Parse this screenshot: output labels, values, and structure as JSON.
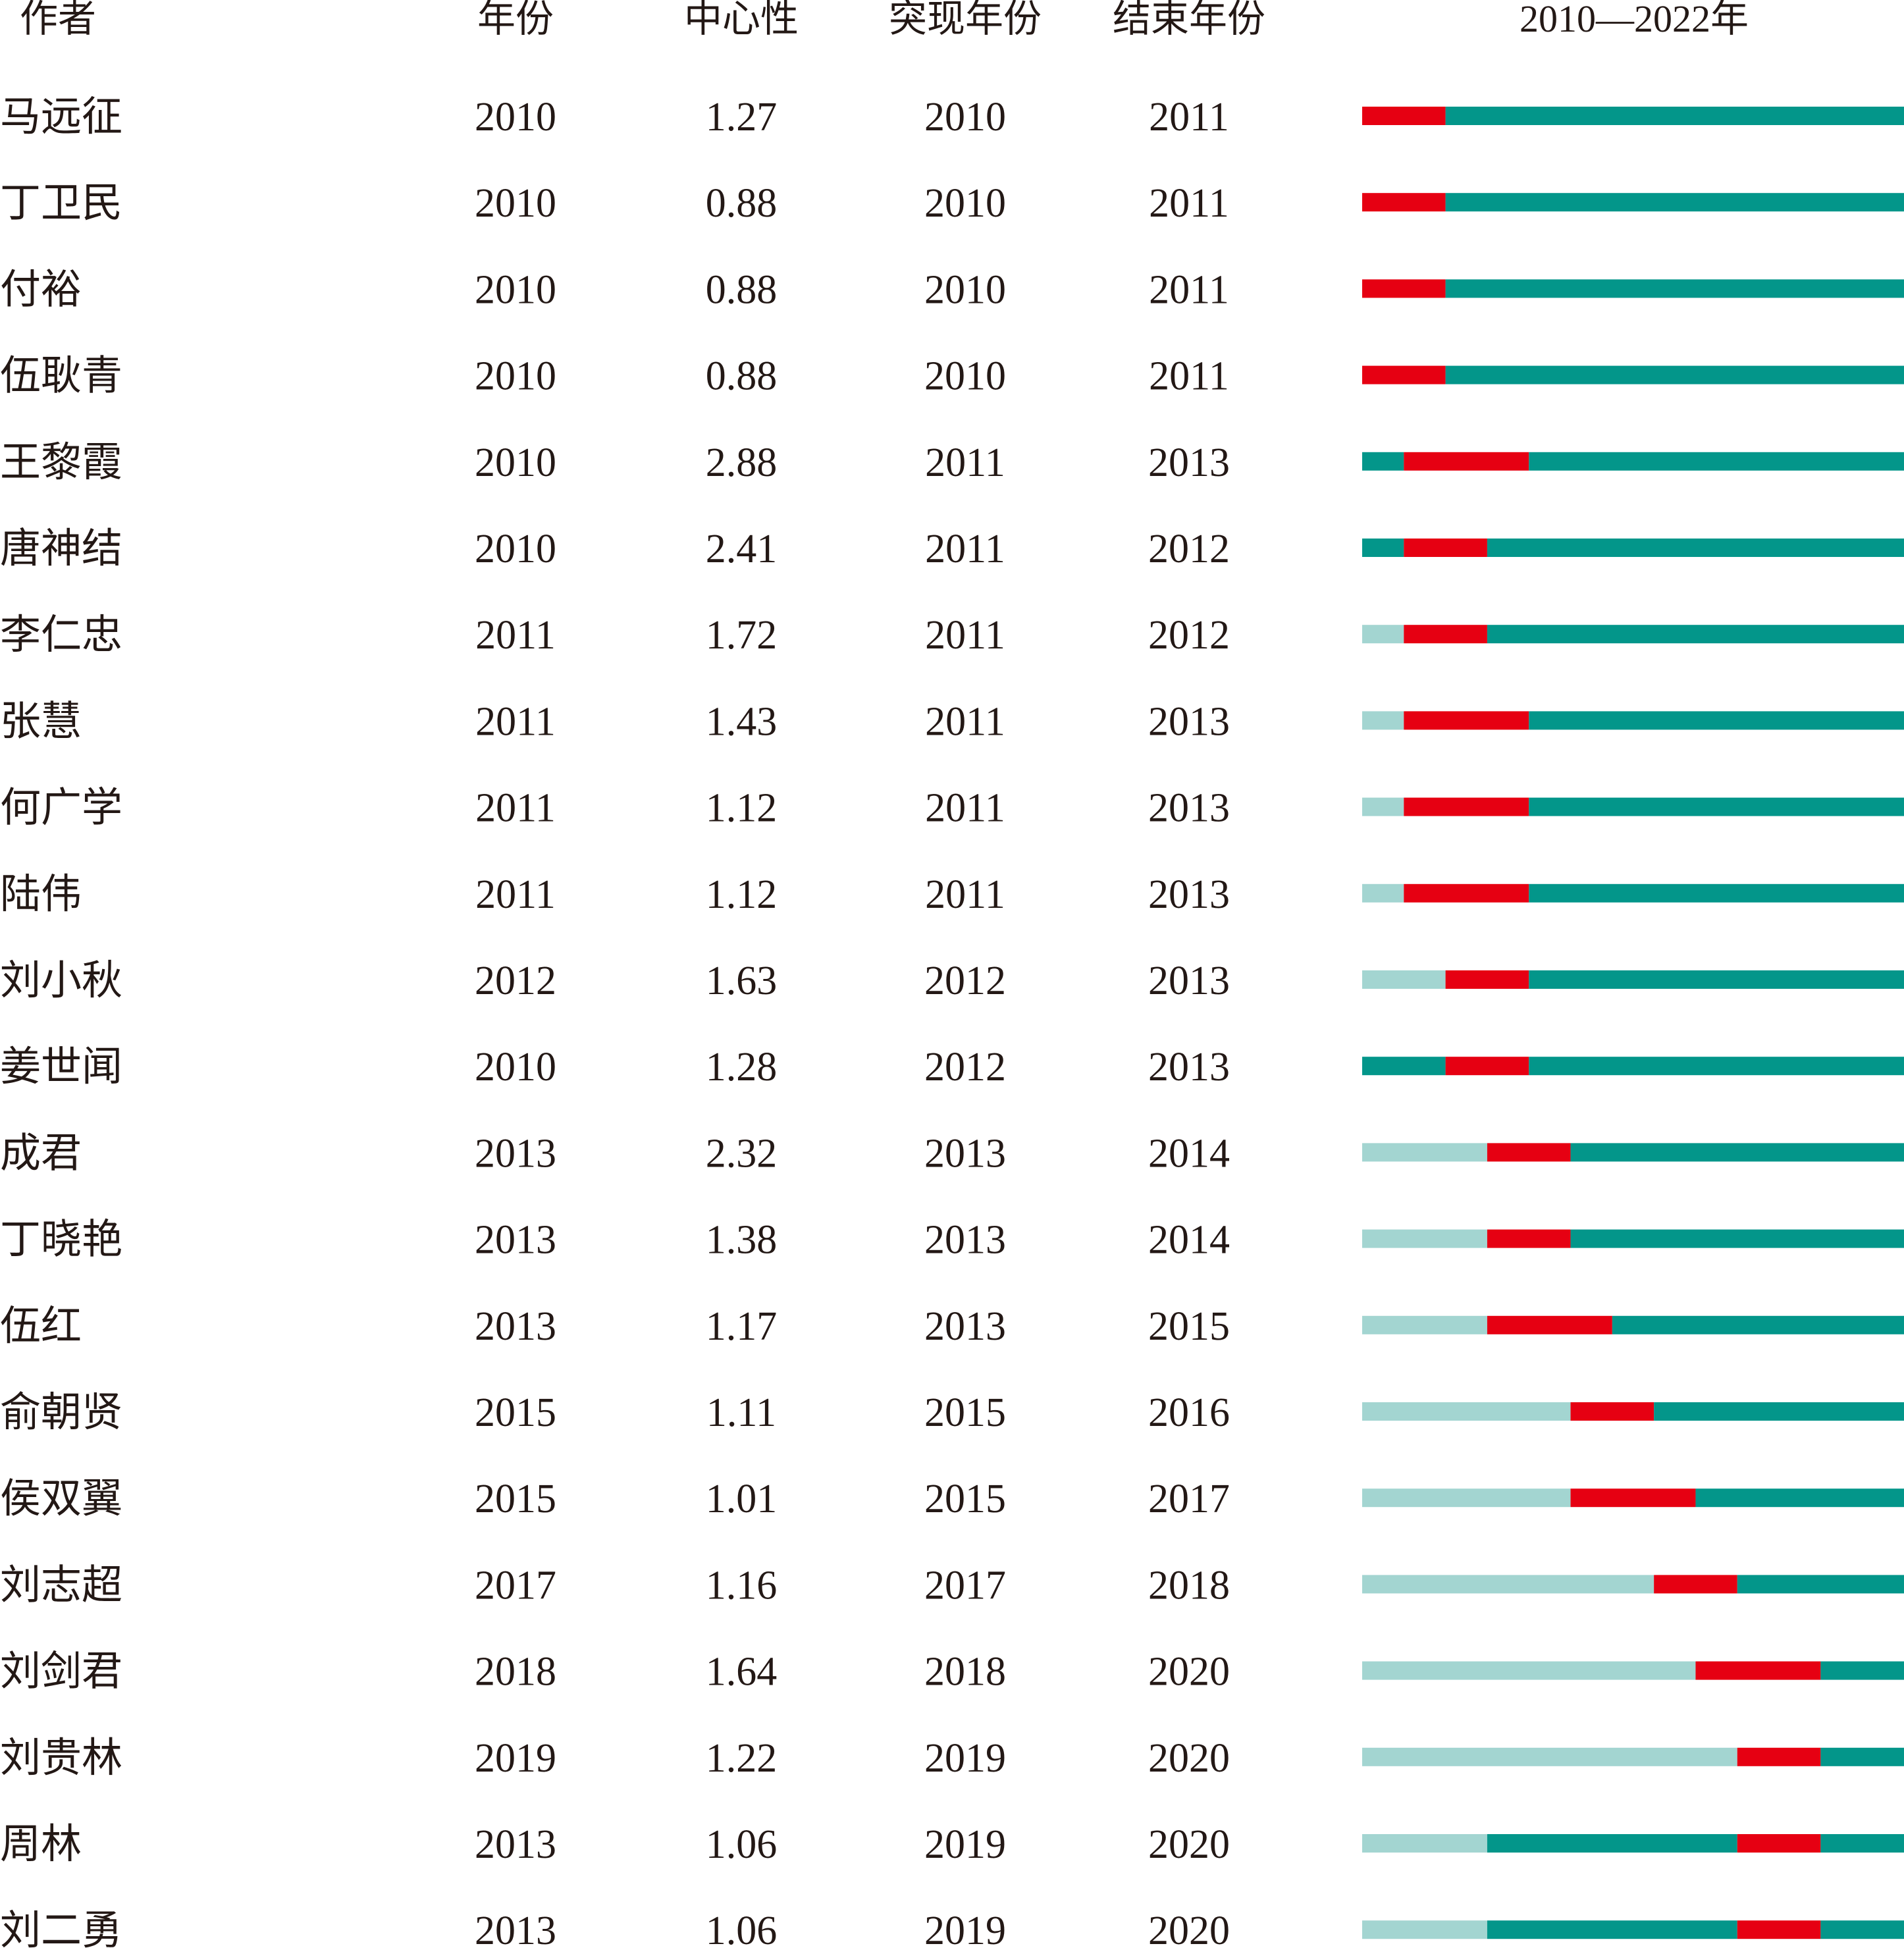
{
  "colors": {
    "before": "#a3d5d1",
    "active": "#03968a",
    "burst": "#e60012",
    "text": "#231815"
  },
  "chart_data": {
    "type": "table",
    "range_start": 2010,
    "range_end": 2022,
    "headers": {
      "author": "作者",
      "year": "年份",
      "centrality": "中心性",
      "begin": "突现年份",
      "end": "结束年份",
      "range": "2010—2022年"
    },
    "rows": [
      {
        "author": "马远征",
        "year": "2010",
        "centrality": "1.27",
        "begin": "2010",
        "end": "2011"
      },
      {
        "author": "丁卫民",
        "year": "2010",
        "centrality": "0.88",
        "begin": "2010",
        "end": "2011"
      },
      {
        "author": "付裕",
        "year": "2010",
        "centrality": "0.88",
        "begin": "2010",
        "end": "2011"
      },
      {
        "author": "伍耿青",
        "year": "2010",
        "centrality": "0.88",
        "begin": "2010",
        "end": "2011"
      },
      {
        "author": "王黎霞",
        "year": "2010",
        "centrality": "2.88",
        "begin": "2011",
        "end": "2013"
      },
      {
        "author": "唐神结",
        "year": "2010",
        "centrality": "2.41",
        "begin": "2011",
        "end": "2012"
      },
      {
        "author": "李仁忠",
        "year": "2011",
        "centrality": "1.72",
        "begin": "2011",
        "end": "2012"
      },
      {
        "author": "张慧",
        "year": "2011",
        "centrality": "1.43",
        "begin": "2011",
        "end": "2013"
      },
      {
        "author": "何广学",
        "year": "2011",
        "centrality": "1.12",
        "begin": "2011",
        "end": "2013"
      },
      {
        "author": "陆伟",
        "year": "2011",
        "centrality": "1.12",
        "begin": "2011",
        "end": "2013"
      },
      {
        "author": "刘小秋",
        "year": "2012",
        "centrality": "1.63",
        "begin": "2012",
        "end": "2013"
      },
      {
        "author": "姜世闻",
        "year": "2010",
        "centrality": "1.28",
        "begin": "2012",
        "end": "2013"
      },
      {
        "author": "成君",
        "year": "2013",
        "centrality": "2.32",
        "begin": "2013",
        "end": "2014"
      },
      {
        "author": "丁晓艳",
        "year": "2013",
        "centrality": "1.38",
        "begin": "2013",
        "end": "2014"
      },
      {
        "author": "伍红",
        "year": "2013",
        "centrality": "1.17",
        "begin": "2013",
        "end": "2015"
      },
      {
        "author": "俞朝贤",
        "year": "2015",
        "centrality": "1.11",
        "begin": "2015",
        "end": "2016"
      },
      {
        "author": "侯双翼",
        "year": "2015",
        "centrality": "1.01",
        "begin": "2015",
        "end": "2017"
      },
      {
        "author": "刘志超",
        "year": "2017",
        "centrality": "1.16",
        "begin": "2017",
        "end": "2018"
      },
      {
        "author": "刘剑君",
        "year": "2018",
        "centrality": "1.64",
        "begin": "2018",
        "end": "2020"
      },
      {
        "author": "刘贵林",
        "year": "2019",
        "centrality": "1.22",
        "begin": "2019",
        "end": "2020"
      },
      {
        "author": "周林",
        "year": "2013",
        "centrality": "1.06",
        "begin": "2019",
        "end": "2020"
      },
      {
        "author": "刘二勇",
        "year": "2013",
        "centrality": "1.06",
        "begin": "2019",
        "end": "2020"
      }
    ]
  }
}
